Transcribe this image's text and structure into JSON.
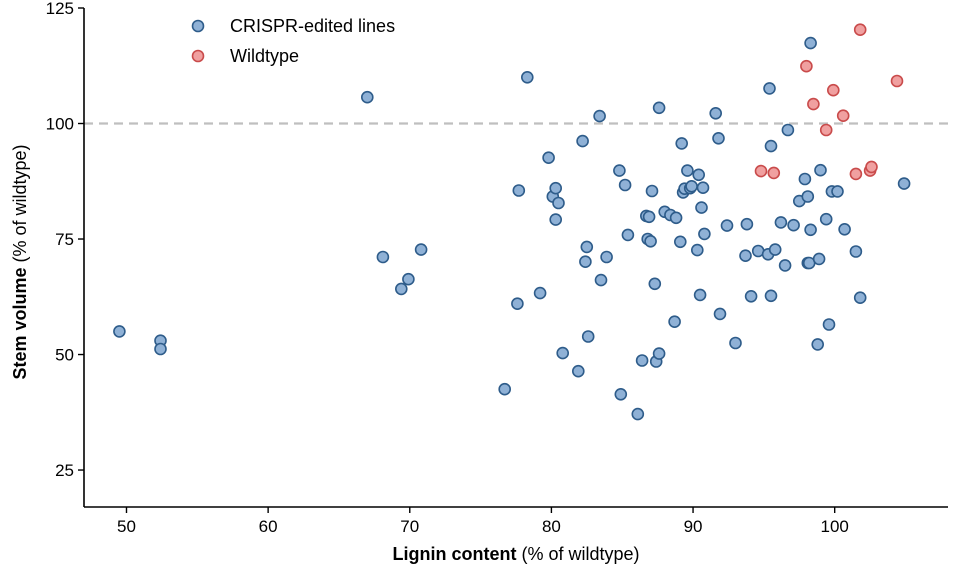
{
  "chart_data": {
    "type": "scatter",
    "xlabel": {
      "bold": "Lignin content",
      "normal": " (% of wildtype)"
    },
    "ylabel": {
      "bold": "Stem volume",
      "normal": " (% of wildtype)"
    },
    "xlim": [
      47,
      108
    ],
    "ylim": [
      17,
      125
    ],
    "xticks": [
      50,
      60,
      70,
      80,
      90,
      100
    ],
    "yticks": [
      25,
      50,
      75,
      100,
      125
    ],
    "reference_line": {
      "y": 100,
      "style": "dashed",
      "color": "#bfbfbf"
    },
    "legend_position": "top-left",
    "series": [
      {
        "name": "CRISPR-edited lines",
        "fill": "#8fb1d6",
        "stroke": "#2e5c8a",
        "points": [
          [
            49.5,
            55
          ],
          [
            52.4,
            53
          ],
          [
            52.4,
            51.2
          ],
          [
            67,
            105.7
          ],
          [
            68.1,
            71.1
          ],
          [
            69.4,
            64.2
          ],
          [
            69.9,
            66.3
          ],
          [
            70.8,
            72.7
          ],
          [
            76.7,
            42.5
          ],
          [
            77.6,
            61
          ],
          [
            77.7,
            85.5
          ],
          [
            78.3,
            110
          ],
          [
            79.2,
            63.3
          ],
          [
            79.8,
            92.6
          ],
          [
            80.1,
            84.2
          ],
          [
            80.3,
            86
          ],
          [
            80.3,
            79.2
          ],
          [
            80.5,
            82.8
          ],
          [
            80.8,
            50.3
          ],
          [
            81.9,
            46.4
          ],
          [
            82.2,
            96.2
          ],
          [
            82.4,
            70.1
          ],
          [
            82.5,
            73.3
          ],
          [
            82.6,
            53.9
          ],
          [
            83.4,
            101.6
          ],
          [
            83.5,
            66.1
          ],
          [
            83.9,
            71.1
          ],
          [
            84.8,
            89.8
          ],
          [
            84.9,
            41.4
          ],
          [
            85.2,
            86.7
          ],
          [
            85.4,
            75.9
          ],
          [
            86.1,
            37.1
          ],
          [
            86.4,
            48.7
          ],
          [
            86.7,
            80
          ],
          [
            86.8,
            75
          ],
          [
            86.9,
            79.8
          ],
          [
            87,
            74.5
          ],
          [
            87.1,
            85.4
          ],
          [
            87.3,
            65.3
          ],
          [
            87.4,
            48.5
          ],
          [
            87.6,
            103.4
          ],
          [
            87.6,
            50.2
          ],
          [
            88,
            80.9
          ],
          [
            88.4,
            80.2
          ],
          [
            88.7,
            57.1
          ],
          [
            88.8,
            79.6
          ],
          [
            89.1,
            74.4
          ],
          [
            89.2,
            95.7
          ],
          [
            89.3,
            85.1
          ],
          [
            89.4,
            85.9
          ],
          [
            89.6,
            89.8
          ],
          [
            89.8,
            86
          ],
          [
            89.9,
            86.4
          ],
          [
            90.3,
            72.6
          ],
          [
            90.4,
            88.9
          ],
          [
            90.5,
            62.9
          ],
          [
            90.6,
            81.8
          ],
          [
            90.7,
            86.1
          ],
          [
            90.8,
            76.1
          ],
          [
            91.6,
            102.2
          ],
          [
            91.8,
            96.8
          ],
          [
            91.9,
            58.8
          ],
          [
            92.4,
            77.9
          ],
          [
            93,
            52.5
          ],
          [
            93.7,
            71.4
          ],
          [
            93.8,
            78.2
          ],
          [
            94.1,
            62.6
          ],
          [
            94.6,
            72.4
          ],
          [
            95.3,
            71.7
          ],
          [
            95.4,
            107.6
          ],
          [
            95.5,
            95.1
          ],
          [
            95.5,
            62.7
          ],
          [
            95.8,
            72.7
          ],
          [
            96.2,
            78.6
          ],
          [
            96.5,
            69.3
          ],
          [
            96.7,
            98.6
          ],
          [
            97.1,
            78
          ],
          [
            97.5,
            83.2
          ],
          [
            97.9,
            88
          ],
          [
            98.1,
            69.8
          ],
          [
            98.1,
            84.2
          ],
          [
            98.2,
            69.8
          ],
          [
            98.3,
            77
          ],
          [
            98.3,
            117.4
          ],
          [
            98.8,
            52.2
          ],
          [
            98.9,
            70.7
          ],
          [
            99,
            89.9
          ],
          [
            99.4,
            79.3
          ],
          [
            99.6,
            56.5
          ],
          [
            99.8,
            85.3
          ],
          [
            100.2,
            85.3
          ],
          [
            100.7,
            77.1
          ],
          [
            101.5,
            72.3
          ],
          [
            101.8,
            62.3
          ],
          [
            104.9,
            87
          ]
        ]
      },
      {
        "name": "Wildtype",
        "fill": "#f0a0a0",
        "stroke": "#c94b4b",
        "points": [
          [
            94.8,
            89.7
          ],
          [
            95.7,
            89.3
          ],
          [
            98.0,
            112.4
          ],
          [
            98.5,
            104.2
          ],
          [
            99.4,
            98.6
          ],
          [
            99.9,
            107.2
          ],
          [
            100.6,
            101.7
          ],
          [
            101.5,
            89.1
          ],
          [
            101.8,
            120.3
          ],
          [
            102.5,
            89.8
          ],
          [
            102.6,
            90.6
          ],
          [
            104.4,
            109.2
          ]
        ]
      }
    ]
  }
}
